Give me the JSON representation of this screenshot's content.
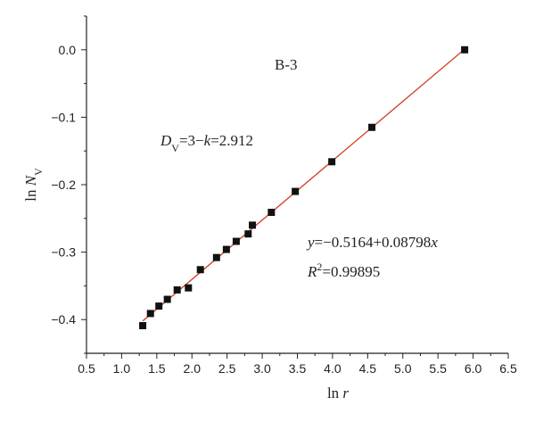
{
  "chart_data": {
    "type": "scatter",
    "xlabel": "ln r",
    "xlabel_parts": {
      "ln": "ln",
      "var": "r"
    },
    "ylabel_parts": {
      "ln": "ln",
      "var": "N",
      "sub": "V"
    },
    "xlim": [
      0.5,
      6.5
    ],
    "ylim": [
      -0.45,
      0.05
    ],
    "x_ticks": [
      "0.5",
      "1.0",
      "1.5",
      "2.0",
      "2.5",
      "3.0",
      "3.5",
      "4.0",
      "4.5",
      "5.0",
      "5.5",
      "6.0",
      "6.5"
    ],
    "x_tick_values": [
      0.5,
      1.0,
      1.5,
      2.0,
      2.5,
      3.0,
      3.5,
      4.0,
      4.5,
      5.0,
      5.5,
      6.0,
      6.5
    ],
    "y_ticks": [
      "0.0",
      "−0.1",
      "−0.2",
      "−0.3",
      "−0.4"
    ],
    "y_tick_values": [
      0.0,
      -0.1,
      -0.2,
      -0.3,
      -0.4
    ],
    "points": [
      {
        "x": 1.3,
        "y": -0.409
      },
      {
        "x": 1.41,
        "y": -0.391
      },
      {
        "x": 1.53,
        "y": -0.38
      },
      {
        "x": 1.65,
        "y": -0.37
      },
      {
        "x": 1.79,
        "y": -0.356
      },
      {
        "x": 1.95,
        "y": -0.353
      },
      {
        "x": 2.12,
        "y": -0.326
      },
      {
        "x": 2.35,
        "y": -0.308
      },
      {
        "x": 2.49,
        "y": -0.296
      },
      {
        "x": 2.63,
        "y": -0.284
      },
      {
        "x": 2.8,
        "y": -0.273
      },
      {
        "x": 2.86,
        "y": -0.26
      },
      {
        "x": 3.13,
        "y": -0.241
      },
      {
        "x": 3.47,
        "y": -0.21
      },
      {
        "x": 3.99,
        "y": -0.166
      },
      {
        "x": 4.56,
        "y": -0.115
      },
      {
        "x": 5.88,
        "y": 0.0
      }
    ],
    "fit": {
      "intercept": -0.5164,
      "slope": 0.08798,
      "x_range": [
        1.3,
        5.9
      ]
    },
    "colors": {
      "points": "#111111",
      "fit_line": "#d23a1f",
      "axis": "#222222"
    },
    "annotations": {
      "label": "B-3",
      "dv": {
        "D": "D",
        "sub": "V",
        "mid": "=3−",
        "k": "k",
        "end": "=2.912"
      },
      "eq": {
        "y": "y",
        "mid": "=−0.5164+0.08798",
        "x": "x"
      },
      "r2": {
        "R": "R",
        "sup": "2",
        "end": "=0.99895"
      }
    },
    "grid": false,
    "legend": "none"
  }
}
